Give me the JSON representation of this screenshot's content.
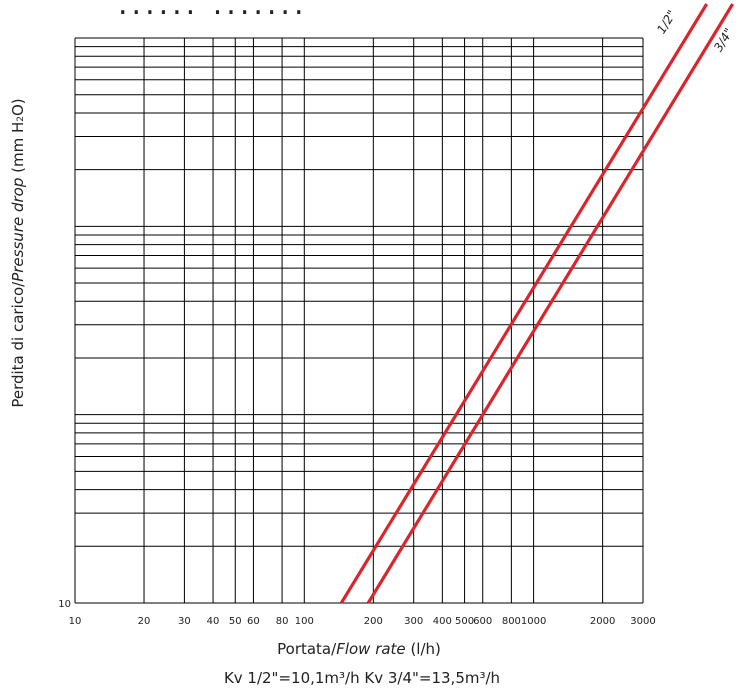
{
  "header_fragment": "...... .......",
  "colors": {
    "series": "#d9252b",
    "grid": "#000000",
    "text": "#222222"
  },
  "chart_data": {
    "type": "line",
    "x_scale": "log",
    "y_scale": "log",
    "xlim": [
      10,
      3000
    ],
    "ylim": [
      10,
      10000
    ],
    "x_ticks": [
      10,
      20,
      30,
      40,
      50,
      60,
      80,
      100,
      200,
      300,
      400,
      500,
      600,
      800,
      1000,
      2000,
      3000
    ],
    "x_tick_labels": [
      "10",
      "20",
      "30",
      "40",
      "50",
      "60",
      "80",
      "100",
      "200",
      "300",
      "400",
      "500",
      "600",
      "800",
      "1000",
      "2000",
      "3000"
    ],
    "y_tick_labels": [
      "10"
    ],
    "xlabel_main": "Portata/",
    "xlabel_italic": "Flow rate",
    "xlabel_unit": " (l/h)",
    "ylabel_main": "Perdita di carico/",
    "ylabel_italic": "Pressure drop",
    "ylabel_unit": " (mm H",
    "ylabel_sub": "2",
    "ylabel_end": "O)",
    "kv_label": "Kv 1/2\"=10,1m³/h   Kv 3/4\"=13,5m³/h",
    "grid": true,
    "series": [
      {
        "name": "1/2\"",
        "x": [
          145,
          2990
        ],
        "y": [
          10,
          4200
        ]
      },
      {
        "name": "3/4\"",
        "x": [
          190,
          3000
        ],
        "y": [
          10,
          2500
        ]
      }
    ]
  }
}
